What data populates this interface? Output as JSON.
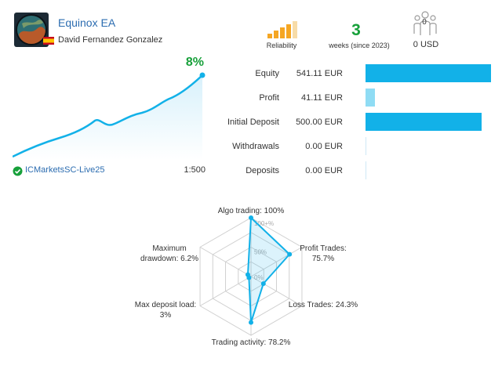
{
  "signal": {
    "name": "Equinox EA",
    "author": "David Fernandez Gonzalez"
  },
  "stats": {
    "reliability_label": "Reliability",
    "reliability_bars_filled": 4,
    "weeks_value": "3",
    "weeks_label": "weeks (since 2023)",
    "subscribers_count": "0",
    "subscribers_usd": "0 USD"
  },
  "growth": {
    "value": "8%",
    "broker": "ICMarketsSC-Live25",
    "leverage": "1:500"
  },
  "balance_rows": [
    {
      "label": "Equity",
      "value": "541.11 EUR",
      "bar_fraction": 1.0,
      "color": "#12b1e8"
    },
    {
      "label": "Profit",
      "value": "41.11 EUR",
      "bar_fraction": 0.076,
      "color": "#8fdcf4"
    },
    {
      "label": "Initial Deposit",
      "value": "500.00 EUR",
      "bar_fraction": 0.924,
      "color": "#12b1e8"
    },
    {
      "label": "Withdrawals",
      "value": "0.00 EUR",
      "bar_fraction": 0.0,
      "color": "#12b1e8"
    },
    {
      "label": "Deposits",
      "value": "0.00 EUR",
      "bar_fraction": 0.0,
      "color": "#12b1e8"
    }
  ],
  "radar": {
    "scale_labels": [
      "100+%",
      "50%",
      "0%"
    ],
    "axes": [
      {
        "label": "Algo trading: 100%",
        "value": 1.0
      },
      {
        "label": "Profit Trades: 75.7%",
        "value": 0.757
      },
      {
        "label": "Loss Trades: 24.3%",
        "value": 0.243
      },
      {
        "label": "Trading activity: 78.2%",
        "value": 0.782
      },
      {
        "label": "Max deposit load: 3%",
        "value": 0.03
      },
      {
        "label": "Maximum drawdown: 6.2%",
        "value": 0.062
      }
    ]
  },
  "colors": {
    "accent": "#12b1e8",
    "positive": "#17a03a",
    "link": "#2b6cb0",
    "reliability": "#f5a623"
  }
}
